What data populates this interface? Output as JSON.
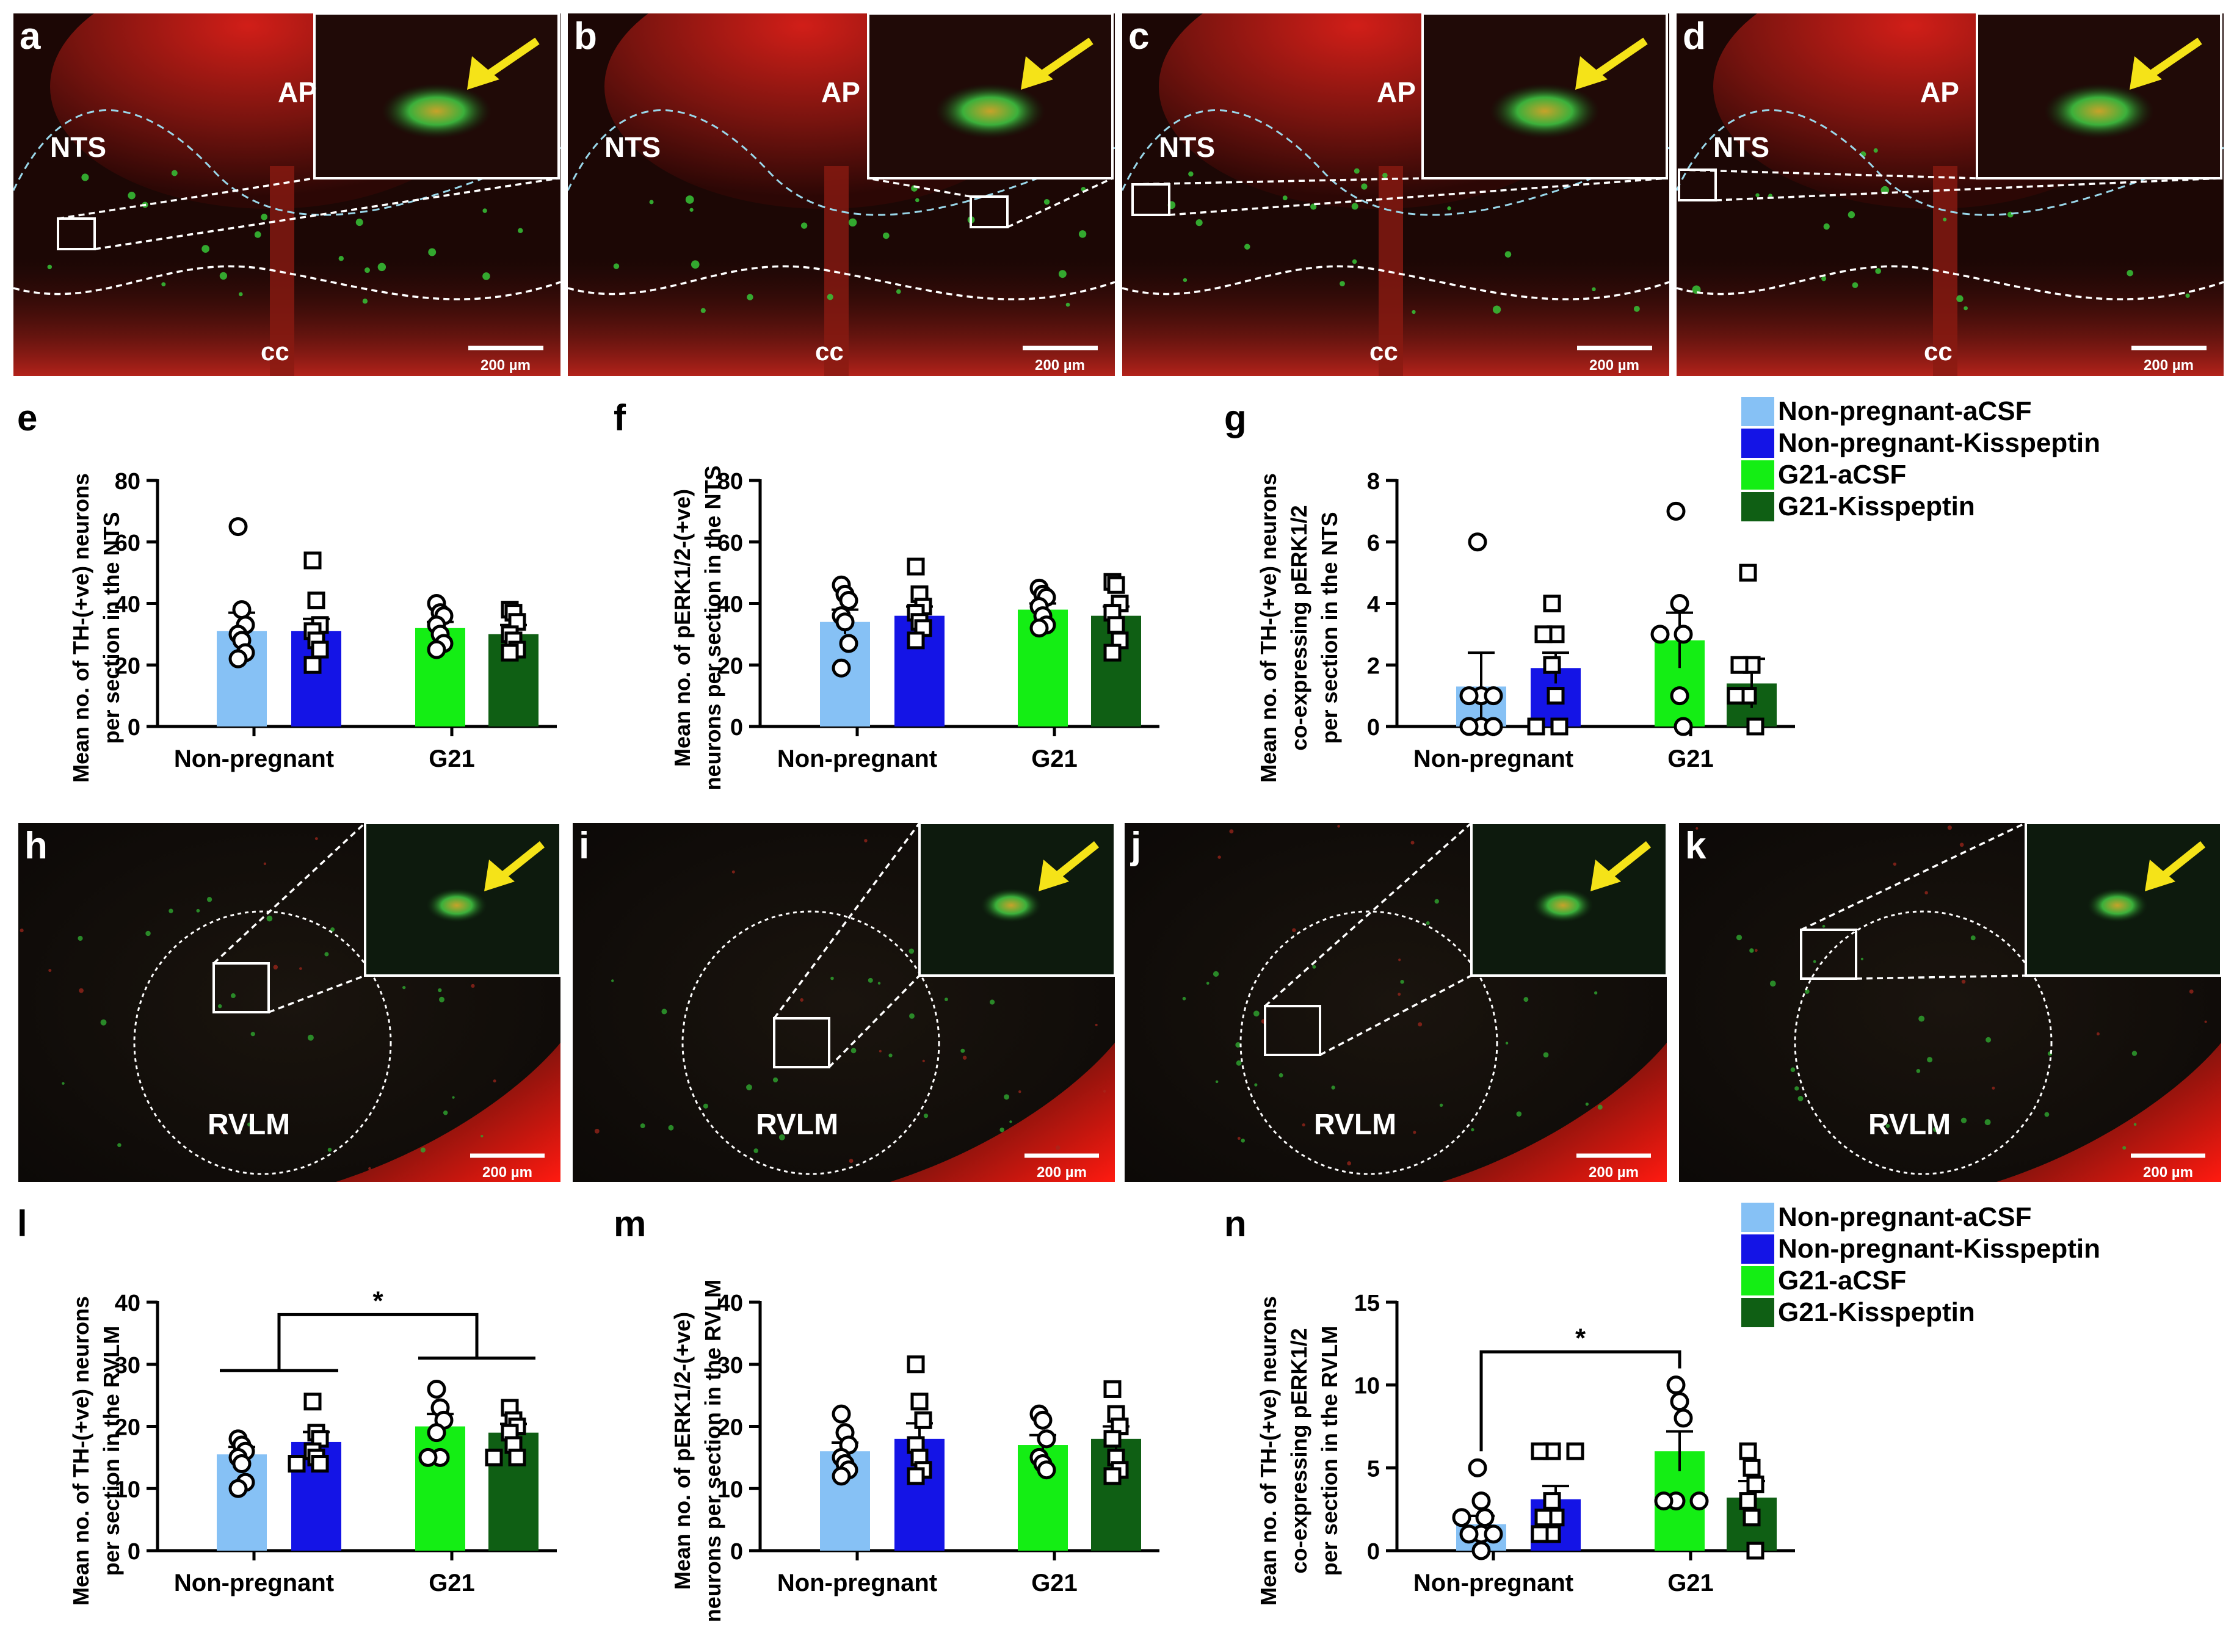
{
  "micrographs": {
    "scale_label": "200 µm",
    "top_row": [
      {
        "letter": "a",
        "labels": [
          "NTS",
          "AP",
          "cc"
        ]
      },
      {
        "letter": "b",
        "labels": [
          "NTS",
          "AP",
          "cc"
        ]
      },
      {
        "letter": "c",
        "labels": [
          "NTS",
          "AP",
          "cc"
        ]
      },
      {
        "letter": "d",
        "labels": [
          "NTS",
          "AP",
          "cc"
        ]
      }
    ],
    "bottom_row": [
      {
        "letter": "h",
        "labels": [
          "RVLM"
        ]
      },
      {
        "letter": "i",
        "labels": [
          "RVLM"
        ]
      },
      {
        "letter": "j",
        "labels": [
          "RVLM"
        ]
      },
      {
        "letter": "k",
        "labels": [
          "RVLM"
        ]
      }
    ]
  },
  "legend": {
    "entries": [
      {
        "name": "Non-pregnant-aCSF",
        "color": "#86c1f5"
      },
      {
        "name": "Non-pregnant-Kisspeptin",
        "color": "#1414e6"
      },
      {
        "name": "G21-aCSF",
        "color": "#14ee14"
      },
      {
        "name": "G21-Kisspeptin",
        "color": "#0f5f14"
      }
    ]
  },
  "chart_data": [
    {
      "letter": "e",
      "type": "bar",
      "ylabel": [
        "Mean no. of TH-(+ve) neurons",
        "per section in the NTS"
      ],
      "categories": [
        "Non-pregnant",
        "G21"
      ],
      "ylim": [
        0,
        80
      ],
      "yticks": [
        0,
        20,
        40,
        60,
        80
      ],
      "series": [
        {
          "name": "Non-pregnant-aCSF",
          "group": 0,
          "mean": 31,
          "sem": 6,
          "marker": "circle",
          "points": [
            65,
            38,
            33,
            30,
            28,
            24,
            22
          ]
        },
        {
          "name": "Non-pregnant-Kisspeptin",
          "group": 0,
          "mean": 31,
          "sem": 4,
          "marker": "square",
          "points": [
            54,
            41,
            33,
            31,
            28,
            25,
            20
          ]
        },
        {
          "name": "G21-aCSF",
          "group": 1,
          "mean": 32,
          "sem": 2,
          "marker": "circle",
          "points": [
            40,
            37,
            36,
            33,
            30,
            27,
            25
          ]
        },
        {
          "name": "G21-Kisspeptin",
          "group": 1,
          "mean": 30,
          "sem": 3,
          "marker": "square",
          "points": [
            38,
            37,
            34,
            30,
            28,
            25,
            24
          ]
        }
      ],
      "annotations": []
    },
    {
      "letter": "f",
      "type": "bar",
      "ylabel": [
        "Mean no. of pERK1/2-(+ve)",
        "neurons per section in the NTS"
      ],
      "categories": [
        "Non-pregnant",
        "G21"
      ],
      "ylim": [
        0,
        80
      ],
      "yticks": [
        0,
        20,
        40,
        60,
        80
      ],
      "series": [
        {
          "name": "Non-pregnant-aCSF",
          "group": 0,
          "mean": 34,
          "sem": 4,
          "marker": "circle",
          "points": [
            46,
            43,
            41,
            36,
            34,
            27,
            19
          ]
        },
        {
          "name": "Non-pregnant-Kisspeptin",
          "group": 0,
          "mean": 36,
          "sem": 3,
          "marker": "square",
          "points": [
            52,
            43,
            39,
            37,
            34,
            32,
            28
          ]
        },
        {
          "name": "G21-aCSF",
          "group": 1,
          "mean": 38,
          "sem": 2,
          "marker": "circle",
          "points": [
            45,
            43,
            42,
            39,
            36,
            33,
            32
          ]
        },
        {
          "name": "G21-Kisspeptin",
          "group": 1,
          "mean": 36,
          "sem": 3,
          "marker": "square",
          "points": [
            47,
            46,
            40,
            37,
            33,
            28,
            24
          ]
        }
      ],
      "annotations": []
    },
    {
      "letter": "g",
      "type": "bar",
      "ylabel": [
        "Mean no. of TH-(+ve) neurons",
        "co-expressing pERK1/2",
        "per section in the NTS"
      ],
      "categories": [
        "Non-pregnant",
        "G21"
      ],
      "ylim": [
        0,
        8
      ],
      "yticks": [
        0,
        2,
        4,
        6,
        8
      ],
      "series": [
        {
          "name": "Non-pregnant-aCSF",
          "group": 0,
          "mean": 1.3,
          "sem": 1.1,
          "marker": "circle",
          "points": [
            6,
            1,
            1,
            1,
            0,
            0,
            0
          ]
        },
        {
          "name": "Non-pregnant-Kisspeptin",
          "group": 0,
          "mean": 1.9,
          "sem": 0.5,
          "marker": "square",
          "points": [
            4,
            3,
            3,
            2,
            1,
            0,
            0
          ]
        },
        {
          "name": "G21-aCSF",
          "group": 1,
          "mean": 2.8,
          "sem": 0.9,
          "marker": "circle",
          "points": [
            7,
            4,
            3,
            3,
            1,
            0
          ]
        },
        {
          "name": "G21-Kisspeptin",
          "group": 1,
          "mean": 1.4,
          "sem": 0.8,
          "marker": "square",
          "points": [
            5,
            2,
            2,
            1,
            1,
            0
          ]
        }
      ],
      "annotations": []
    },
    {
      "letter": "l",
      "type": "bar",
      "ylabel": [
        "Mean no. of TH-(+ve) neurons",
        "per section in the RVLM"
      ],
      "categories": [
        "Non-pregnant",
        "G21"
      ],
      "ylim": [
        0,
        40
      ],
      "yticks": [
        0,
        10,
        20,
        30,
        40
      ],
      "series": [
        {
          "name": "Non-pregnant-aCSF",
          "group": 0,
          "mean": 15.5,
          "sem": 1.2,
          "marker": "circle",
          "points": [
            18,
            17,
            16,
            15,
            14,
            11,
            10
          ]
        },
        {
          "name": "Non-pregnant-Kisspeptin",
          "group": 0,
          "mean": 17.5,
          "sem": 1.6,
          "marker": "square",
          "points": [
            24,
            19,
            18,
            16,
            15,
            14,
            14
          ]
        },
        {
          "name": "G21-aCSF",
          "group": 1,
          "mean": 20,
          "sem": 2,
          "marker": "circle",
          "points": [
            26,
            23,
            21,
            19,
            15,
            15
          ]
        },
        {
          "name": "G21-Kisspeptin",
          "group": 1,
          "mean": 19,
          "sem": 1.4,
          "marker": "square",
          "points": [
            23,
            21,
            20,
            19,
            17,
            15,
            15
          ]
        }
      ],
      "annotations": [
        {
          "type": "group",
          "label": "*"
        }
      ]
    },
    {
      "letter": "m",
      "type": "bar",
      "ylabel": [
        "Mean no. of pERK1/2-(+ve)",
        "neurons per section in the RVLM"
      ],
      "categories": [
        "Non-pregnant",
        "G21"
      ],
      "ylim": [
        0,
        40
      ],
      "yticks": [
        0,
        10,
        20,
        30,
        40
      ],
      "series": [
        {
          "name": "Non-pregnant-aCSF",
          "group": 0,
          "mean": 16,
          "sem": 1.4,
          "marker": "circle",
          "points": [
            22,
            19,
            17,
            15,
            14,
            13,
            12
          ]
        },
        {
          "name": "Non-pregnant-Kisspeptin",
          "group": 0,
          "mean": 18,
          "sem": 2.5,
          "marker": "square",
          "points": [
            30,
            24,
            21,
            17,
            15,
            13,
            12
          ]
        },
        {
          "name": "G21-aCSF",
          "group": 1,
          "mean": 17,
          "sem": 1.6,
          "marker": "circle",
          "points": [
            22,
            21,
            18,
            15,
            14,
            13
          ]
        },
        {
          "name": "G21-Kisspeptin",
          "group": 1,
          "mean": 18,
          "sem": 2,
          "marker": "square",
          "points": [
            26,
            22,
            20,
            18,
            15,
            13,
            12
          ]
        }
      ],
      "annotations": []
    },
    {
      "letter": "n",
      "type": "bar",
      "ylabel": [
        "Mean no. of TH-(+ve) neurons",
        "co-expressing pERK1/2",
        "per section in the RVLM"
      ],
      "categories": [
        "Non-pregnant",
        "G21"
      ],
      "ylim": [
        0,
        15
      ],
      "yticks": [
        0,
        5,
        10,
        15
      ],
      "series": [
        {
          "name": "Non-pregnant-aCSF",
          "group": 0,
          "mean": 1.6,
          "sem": 0.5,
          "marker": "circle",
          "points": [
            5,
            3,
            2,
            2,
            1,
            1,
            1,
            0
          ]
        },
        {
          "name": "Non-pregnant-Kisspeptin",
          "group": 0,
          "mean": 3.1,
          "sem": 0.8,
          "marker": "square",
          "points": [
            6,
            6,
            6,
            3,
            2,
            2,
            1,
            1
          ]
        },
        {
          "name": "G21-aCSF",
          "group": 1,
          "mean": 6,
          "sem": 1.2,
          "marker": "circle",
          "points": [
            10,
            9,
            8,
            3,
            3,
            3
          ]
        },
        {
          "name": "G21-Kisspeptin",
          "group": 1,
          "mean": 3.2,
          "sem": 1,
          "marker": "square",
          "points": [
            6,
            5,
            4,
            3,
            2,
            0
          ]
        }
      ],
      "annotations": [
        {
          "type": "pair",
          "from": 0,
          "to": 2,
          "label": "*"
        }
      ]
    }
  ]
}
